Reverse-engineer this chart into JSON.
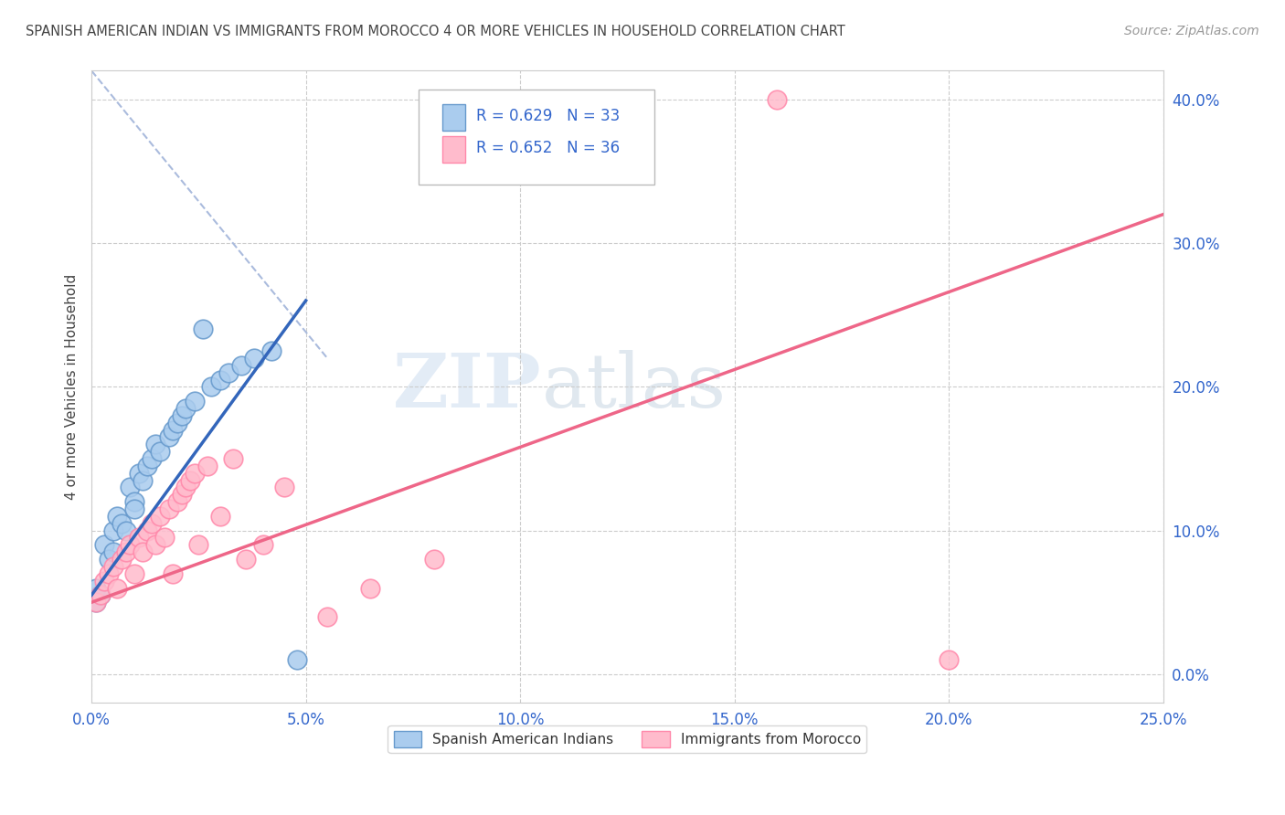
{
  "title": "SPANISH AMERICAN INDIAN VS IMMIGRANTS FROM MOROCCO 4 OR MORE VEHICLES IN HOUSEHOLD CORRELATION CHART",
  "source": "Source: ZipAtlas.com",
  "ylabel": "4 or more Vehicles in Household",
  "watermark_zip": "ZIP",
  "watermark_atlas": "atlas",
  "legend_blue_r": "R = 0.629",
  "legend_blue_n": "N = 33",
  "legend_pink_r": "R = 0.652",
  "legend_pink_n": "N = 36",
  "blue_fill": "#AACCEE",
  "blue_edge": "#6699CC",
  "pink_fill": "#FFBBCC",
  "pink_edge": "#FF88AA",
  "blue_line_color": "#3366BB",
  "pink_line_color": "#EE6688",
  "ref_line_color": "#AABBDD",
  "text_blue": "#3366CC",
  "text_dark": "#444444",
  "text_source": "#999999",
  "grid_color": "#CCCCCC",
  "blue_scatter_x": [
    0.001,
    0.001,
    0.002,
    0.003,
    0.004,
    0.005,
    0.005,
    0.006,
    0.007,
    0.008,
    0.009,
    0.01,
    0.01,
    0.011,
    0.012,
    0.013,
    0.014,
    0.015,
    0.016,
    0.018,
    0.019,
    0.02,
    0.021,
    0.022,
    0.024,
    0.026,
    0.028,
    0.03,
    0.032,
    0.035,
    0.038,
    0.042,
    0.048
  ],
  "blue_scatter_y": [
    0.05,
    0.06,
    0.055,
    0.09,
    0.08,
    0.1,
    0.085,
    0.11,
    0.105,
    0.1,
    0.13,
    0.12,
    0.115,
    0.14,
    0.135,
    0.145,
    0.15,
    0.16,
    0.155,
    0.165,
    0.17,
    0.175,
    0.18,
    0.185,
    0.19,
    0.24,
    0.2,
    0.205,
    0.21,
    0.215,
    0.22,
    0.225,
    0.01
  ],
  "pink_scatter_x": [
    0.001,
    0.002,
    0.003,
    0.004,
    0.005,
    0.006,
    0.007,
    0.008,
    0.009,
    0.01,
    0.011,
    0.012,
    0.013,
    0.014,
    0.015,
    0.016,
    0.017,
    0.018,
    0.019,
    0.02,
    0.021,
    0.022,
    0.023,
    0.024,
    0.025,
    0.027,
    0.03,
    0.033,
    0.036,
    0.04,
    0.045,
    0.055,
    0.065,
    0.08,
    0.16,
    0.2
  ],
  "pink_scatter_y": [
    0.05,
    0.055,
    0.065,
    0.07,
    0.075,
    0.06,
    0.08,
    0.085,
    0.09,
    0.07,
    0.095,
    0.085,
    0.1,
    0.105,
    0.09,
    0.11,
    0.095,
    0.115,
    0.07,
    0.12,
    0.125,
    0.13,
    0.135,
    0.14,
    0.09,
    0.145,
    0.11,
    0.15,
    0.08,
    0.09,
    0.13,
    0.04,
    0.06,
    0.08,
    0.4,
    0.01
  ],
  "blue_trend_x": [
    0.0,
    0.05
  ],
  "blue_trend_y": [
    0.055,
    0.26
  ],
  "pink_trend_x": [
    0.0,
    0.25
  ],
  "pink_trend_y": [
    0.05,
    0.32
  ],
  "ref_line_x": [
    0.0,
    0.055
  ],
  "ref_line_y": [
    0.42,
    0.22
  ],
  "xlim": [
    0.0,
    0.25
  ],
  "ylim": [
    -0.02,
    0.42
  ],
  "xticks": [
    0.0,
    0.05,
    0.1,
    0.15,
    0.2,
    0.25
  ],
  "yticks": [
    0.0,
    0.1,
    0.2,
    0.3,
    0.4
  ]
}
